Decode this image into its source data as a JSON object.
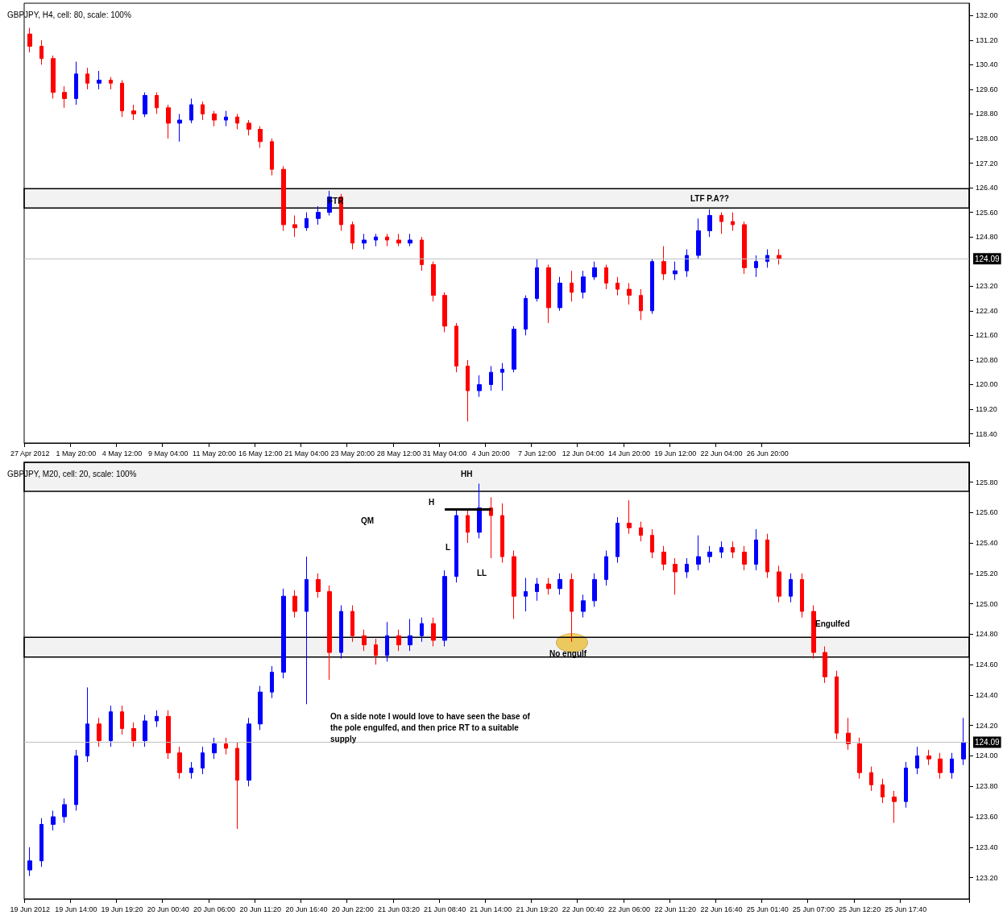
{
  "chart_data": [
    {
      "type": "candlestick",
      "title": "GBPJPY, H4, cell: 80, scale: 100%",
      "categories": [
        "27 Apr 2012",
        null,
        null,
        null,
        "1 May 20:00",
        null,
        null,
        null,
        "4 May 12:00",
        null,
        null,
        null,
        "9 May 04:00",
        null,
        null,
        null,
        "11 May 20:00",
        null,
        null,
        null,
        "16 May 12:00",
        null,
        null,
        null,
        "21 May 04:00",
        null,
        null,
        null,
        "23 May 20:00",
        null,
        null,
        null,
        "28 May 12:00",
        null,
        null,
        null,
        "31 May 04:00",
        null,
        null,
        null,
        "4 Jun 20:00",
        null,
        null,
        null,
        "7 Jun 12:00",
        null,
        null,
        null,
        "12 Jun 04:00",
        null,
        null,
        null,
        "14 Jun 20:00",
        null,
        null,
        null,
        "19 Jun 12:00",
        null,
        null,
        null,
        "22 Jun 04:00",
        null,
        null,
        null,
        "26 Jun 20:00",
        null,
        null,
        null,
        null,
        null,
        null,
        null,
        null,
        null,
        null,
        null,
        null,
        null,
        null,
        null,
        null,
        null
      ],
      "ohlc": [
        [
          131.4,
          131.6,
          130.8,
          131.0
        ],
        [
          131.0,
          131.2,
          130.4,
          130.6
        ],
        [
          130.6,
          130.7,
          129.3,
          129.5
        ],
        [
          129.5,
          129.7,
          129.0,
          129.3
        ],
        [
          129.3,
          130.5,
          129.1,
          130.1
        ],
        [
          130.1,
          130.3,
          129.6,
          129.8
        ],
        [
          129.8,
          130.2,
          129.6,
          129.9
        ],
        [
          129.9,
          130.0,
          129.6,
          129.8
        ],
        [
          129.8,
          129.9,
          128.7,
          128.9
        ],
        [
          128.9,
          129.1,
          128.6,
          128.8
        ],
        [
          128.8,
          129.5,
          128.7,
          129.4
        ],
        [
          129.4,
          129.5,
          128.8,
          129.0
        ],
        [
          129.0,
          129.1,
          128.0,
          128.5
        ],
        [
          128.5,
          128.8,
          127.9,
          128.6
        ],
        [
          128.6,
          129.3,
          128.5,
          129.1
        ],
        [
          129.1,
          129.2,
          128.6,
          128.8
        ],
        [
          128.8,
          128.9,
          128.4,
          128.6
        ],
        [
          128.6,
          128.9,
          128.4,
          128.7
        ],
        [
          128.7,
          128.8,
          128.3,
          128.5
        ],
        [
          128.5,
          128.6,
          128.1,
          128.3
        ],
        [
          128.3,
          128.4,
          127.7,
          127.9
        ],
        [
          127.9,
          128.0,
          126.8,
          127.0
        ],
        [
          127.0,
          127.1,
          125.0,
          125.2
        ],
        [
          125.2,
          125.5,
          124.8,
          125.1
        ],
        [
          125.1,
          125.6,
          125.0,
          125.4
        ],
        [
          125.4,
          125.8,
          125.2,
          125.6
        ],
        [
          125.6,
          126.3,
          125.5,
          126.1
        ],
        [
          126.1,
          126.2,
          125.0,
          125.2
        ],
        [
          125.2,
          125.3,
          124.4,
          124.6
        ],
        [
          124.6,
          124.9,
          124.4,
          124.7
        ],
        [
          124.7,
          124.9,
          124.5,
          124.8
        ],
        [
          124.8,
          124.9,
          124.5,
          124.7
        ],
        [
          124.7,
          124.9,
          124.5,
          124.6
        ],
        [
          124.6,
          124.9,
          124.5,
          124.7
        ],
        [
          124.7,
          124.8,
          123.7,
          123.9
        ],
        [
          123.9,
          124.0,
          122.7,
          122.9
        ],
        [
          122.9,
          123.0,
          121.7,
          121.9
        ],
        [
          121.9,
          122.0,
          120.4,
          120.6
        ],
        [
          120.6,
          120.8,
          118.8,
          119.8
        ],
        [
          119.8,
          120.3,
          119.6,
          120.0
        ],
        [
          120.0,
          120.6,
          119.8,
          120.4
        ],
        [
          120.4,
          120.7,
          119.8,
          120.5
        ],
        [
          120.5,
          121.9,
          120.4,
          121.8
        ],
        [
          121.8,
          122.9,
          121.6,
          122.8
        ],
        [
          122.8,
          124.1,
          122.7,
          123.8
        ],
        [
          123.8,
          123.9,
          122.0,
          122.5
        ],
        [
          122.5,
          123.5,
          122.4,
          123.3
        ],
        [
          123.3,
          123.7,
          122.7,
          123.0
        ],
        [
          123.0,
          123.7,
          122.8,
          123.5
        ],
        [
          123.5,
          124.0,
          123.4,
          123.8
        ],
        [
          123.8,
          123.9,
          123.1,
          123.3
        ],
        [
          123.3,
          123.5,
          122.9,
          123.1
        ],
        [
          123.1,
          123.3,
          122.6,
          122.9
        ],
        [
          122.9,
          123.1,
          122.1,
          122.4
        ],
        [
          122.4,
          124.1,
          122.3,
          124.0
        ],
        [
          124.0,
          124.5,
          123.4,
          123.6
        ],
        [
          123.6,
          124.0,
          123.4,
          123.7
        ],
        [
          123.7,
          124.4,
          123.5,
          124.2
        ],
        [
          124.2,
          125.4,
          124.1,
          125.0
        ],
        [
          125.0,
          125.7,
          124.8,
          125.5
        ],
        [
          125.5,
          125.6,
          124.9,
          125.3
        ],
        [
          125.3,
          125.6,
          125.0,
          125.2
        ],
        [
          125.2,
          125.3,
          123.6,
          123.8
        ],
        [
          123.8,
          124.2,
          123.5,
          124.0
        ],
        [
          124.0,
          124.4,
          123.8,
          124.2
        ],
        [
          124.2,
          124.4,
          123.9,
          124.09
        ],
        null,
        null,
        null,
        null,
        null,
        null,
        null,
        null,
        null,
        null,
        null,
        null,
        null,
        null,
        null,
        null
      ],
      "colors": [
        "#ff0000",
        "#ff0000",
        "#ff0000",
        "#ff0000",
        "#0000ff",
        "#ff0000",
        "#0000ff",
        "#ff0000",
        "#ff0000",
        "#ff0000",
        "#0000ff",
        "#ff0000",
        "#ff0000",
        "#0000ff",
        "#0000ff",
        "#ff0000",
        "#ff0000",
        "#0000ff",
        "#ff0000",
        "#ff0000",
        "#ff0000",
        "#ff0000",
        "#ff0000",
        "#ff0000",
        "#0000ff",
        "#0000ff",
        "#0000ff",
        "#ff0000",
        "#ff0000",
        "#0000ff",
        "#0000ff",
        "#ff0000",
        "#ff0000",
        "#0000ff",
        "#ff0000",
        "#ff0000",
        "#ff0000",
        "#ff0000",
        "#ff0000",
        "#0000ff",
        "#0000ff",
        "#0000ff",
        "#0000ff",
        "#0000ff",
        "#0000ff",
        "#ff0000",
        "#0000ff",
        "#ff0000",
        "#0000ff",
        "#0000ff",
        "#ff0000",
        "#ff0000",
        "#ff0000",
        "#ff0000",
        "#0000ff",
        "#ff0000",
        "#0000ff",
        "#0000ff",
        "#0000ff",
        "#0000ff",
        "#ff0000",
        "#ff0000",
        "#ff0000",
        "#0000ff",
        "#0000ff",
        "#ff0000",
        null,
        null,
        null,
        null,
        null,
        null,
        null,
        null,
        null,
        null,
        null,
        null,
        null,
        null,
        null,
        null
      ],
      "ylim": [
        118.1,
        132.4
      ],
      "yticks": [
        {
          "value": 118.4,
          "label": "118.40"
        },
        {
          "value": 119.2,
          "label": "119.20"
        },
        {
          "value": 120,
          "label": "120.00"
        },
        {
          "value": 120.8,
          "label": "120.80"
        },
        {
          "value": 121.6,
          "label": "121.60"
        },
        {
          "value": 122.4,
          "label": "122.40"
        },
        {
          "value": 123.2,
          "label": "123.20"
        },
        {
          "value": 124.8,
          "label": "124.80"
        },
        {
          "value": 125.6,
          "label": "125.60"
        },
        {
          "value": 126.4,
          "label": "126.40"
        },
        {
          "value": 127.2,
          "label": "127.20"
        },
        {
          "value": 128,
          "label": "128.00"
        },
        {
          "value": 128.8,
          "label": "128.80"
        },
        {
          "value": 129.6,
          "label": "129.60"
        },
        {
          "value": 130.4,
          "label": "130.40"
        },
        {
          "value": 131.2,
          "label": "131.20"
        },
        {
          "value": 132,
          "label": "132.00"
        }
      ],
      "ref_lines": [
        {
          "axis": "y",
          "value": 124.09,
          "label": "124.09",
          "color": "#c0c0c0"
        }
      ],
      "bands": [
        {
          "axis": "y",
          "from": 125.74,
          "to": 126.37
        }
      ],
      "annotations": [
        "FTR",
        "LTF P.A??"
      ]
    },
    {
      "type": "candlestick",
      "title": "GBPJPY, M20, cell: 20, scale: 100%",
      "categories": [
        "19 Jun 2012",
        null,
        null,
        null,
        "19 Jun 14:00",
        null,
        null,
        null,
        "19 Jun 19:20",
        null,
        null,
        null,
        "20 Jun 00:40",
        null,
        null,
        null,
        "20 Jun 06:00",
        null,
        null,
        null,
        "20 Jun 11:20",
        null,
        null,
        null,
        "20 Jun 16:40",
        null,
        null,
        null,
        "20 Jun 22:00",
        null,
        null,
        null,
        "21 Jun 03:20",
        null,
        null,
        null,
        "21 Jun 08:40",
        null,
        null,
        null,
        "21 Jun 14:00",
        null,
        null,
        null,
        "21 Jun 19:20",
        null,
        null,
        null,
        "22 Jun 00:40",
        null,
        null,
        null,
        "22 Jun 06:00",
        null,
        null,
        null,
        "22 Jun 11:20",
        null,
        null,
        null,
        "22 Jun 16:40",
        null,
        null,
        null,
        "25 Jun 01:40",
        null,
        null,
        null,
        "25 Jun 07:00",
        null,
        null,
        null,
        "25 Jun 12:20",
        null,
        null,
        null,
        "25 Jun 17:40",
        null,
        null,
        null,
        null,
        null
      ],
      "ohlc": [
        [
          123.25,
          123.4,
          123.21,
          123.31
        ],
        [
          123.31,
          123.59,
          123.27,
          123.55
        ],
        [
          123.55,
          123.64,
          123.51,
          123.6
        ],
        [
          123.6,
          123.72,
          123.56,
          123.68
        ],
        [
          123.68,
          124.04,
          123.64,
          124.0
        ],
        [
          124.0,
          124.45,
          123.96,
          124.21
        ],
        [
          124.21,
          124.25,
          124.06,
          124.1
        ],
        [
          124.1,
          124.33,
          124.06,
          124.29
        ],
        [
          124.29,
          124.33,
          124.14,
          124.18
        ],
        [
          124.18,
          124.22,
          124.06,
          124.1
        ],
        [
          124.1,
          124.27,
          124.06,
          124.23
        ],
        [
          124.23,
          124.3,
          124.19,
          124.26
        ],
        [
          124.26,
          124.3,
          123.98,
          124.02
        ],
        [
          124.02,
          124.06,
          123.85,
          123.89
        ],
        [
          123.89,
          123.96,
          123.85,
          123.92
        ],
        [
          123.92,
          124.06,
          123.88,
          124.02
        ],
        [
          124.02,
          124.12,
          123.98,
          124.08
        ],
        [
          124.08,
          124.12,
          124.01,
          124.05
        ],
        [
          124.05,
          124.09,
          123.52,
          123.84
        ],
        [
          123.84,
          124.25,
          123.8,
          124.21
        ],
        [
          124.21,
          124.46,
          124.17,
          124.42
        ],
        [
          124.42,
          124.59,
          124.38,
          124.55
        ],
        [
          124.55,
          125.1,
          124.51,
          125.05
        ],
        [
          125.05,
          125.09,
          124.91,
          124.95
        ],
        [
          124.95,
          125.31,
          124.34,
          125.16
        ],
        [
          125.16,
          125.2,
          125.04,
          125.08
        ],
        [
          125.08,
          125.12,
          124.5,
          124.68
        ],
        [
          124.68,
          124.99,
          124.64,
          124.95
        ],
        [
          124.95,
          124.99,
          124.75,
          124.79
        ],
        [
          124.79,
          124.83,
          124.69,
          124.73
        ],
        [
          124.73,
          124.77,
          124.6,
          124.66
        ],
        [
          124.66,
          124.88,
          124.62,
          124.79
        ],
        [
          124.79,
          124.83,
          124.69,
          124.73
        ],
        [
          124.73,
          124.9,
          124.69,
          124.79
        ],
        [
          124.79,
          124.91,
          124.75,
          124.87
        ],
        [
          124.87,
          124.91,
          124.72,
          124.76
        ],
        [
          124.76,
          125.22,
          124.72,
          125.18
        ],
        [
          125.18,
          125.62,
          125.14,
          125.58
        ],
        [
          125.58,
          125.62,
          125.4,
          125.47
        ],
        [
          125.47,
          125.79,
          125.43,
          125.63
        ],
        [
          125.63,
          125.7,
          125.3,
          125.58
        ],
        [
          125.58,
          125.66,
          125.27,
          125.31
        ],
        [
          125.31,
          125.35,
          124.9,
          125.05
        ],
        [
          125.05,
          125.17,
          124.95,
          125.08
        ],
        [
          125.08,
          125.17,
          125.02,
          125.13
        ],
        [
          125.13,
          125.17,
          125.06,
          125.1
        ],
        [
          125.1,
          125.2,
          125.06,
          125.16
        ],
        [
          125.16,
          125.2,
          124.75,
          124.95
        ],
        [
          124.95,
          125.06,
          124.91,
          125.02
        ],
        [
          125.02,
          125.2,
          124.98,
          125.16
        ],
        [
          125.16,
          125.35,
          125.12,
          125.31
        ],
        [
          125.31,
          125.57,
          125.27,
          125.53
        ],
        [
          125.53,
          125.68,
          125.46,
          125.5
        ],
        [
          125.5,
          125.54,
          125.41,
          125.45
        ],
        [
          125.45,
          125.49,
          125.3,
          125.34
        ],
        [
          125.34,
          125.38,
          125.22,
          125.26
        ],
        [
          125.26,
          125.3,
          125.06,
          125.21
        ],
        [
          125.21,
          125.3,
          125.17,
          125.26
        ],
        [
          125.26,
          125.45,
          125.22,
          125.31
        ],
        [
          125.31,
          125.38,
          125.27,
          125.34
        ],
        [
          125.34,
          125.41,
          125.3,
          125.37
        ],
        [
          125.37,
          125.41,
          125.3,
          125.34
        ],
        [
          125.34,
          125.38,
          125.22,
          125.26
        ],
        [
          125.26,
          125.49,
          125.22,
          125.42
        ],
        [
          125.42,
          125.46,
          125.17,
          125.21
        ],
        [
          125.21,
          125.25,
          125.01,
          125.05
        ],
        [
          125.05,
          125.2,
          125.01,
          125.16
        ],
        [
          125.16,
          125.2,
          124.91,
          124.95
        ],
        [
          124.95,
          124.99,
          124.64,
          124.68
        ],
        [
          124.68,
          124.72,
          124.48,
          124.52
        ],
        [
          124.52,
          124.56,
          124.11,
          124.15
        ],
        [
          124.15,
          124.25,
          124.04,
          124.08
        ],
        [
          124.08,
          124.12,
          123.85,
          123.89
        ],
        [
          123.89,
          123.93,
          123.77,
          123.81
        ],
        [
          123.81,
          123.85,
          123.69,
          123.73
        ],
        [
          123.73,
          123.77,
          123.56,
          123.7
        ],
        [
          123.7,
          123.96,
          123.66,
          123.92
        ],
        [
          123.92,
          124.06,
          123.88,
          124.0
        ],
        [
          124.0,
          124.04,
          123.94,
          123.98
        ],
        [
          123.98,
          124.02,
          123.85,
          123.89
        ],
        [
          123.89,
          124.02,
          123.85,
          123.98
        ],
        [
          123.98,
          124.25,
          123.94,
          124.09
        ]
      ],
      "colors": [
        "#0000ff",
        "#0000ff",
        "#0000ff",
        "#0000ff",
        "#0000ff",
        "#0000ff",
        "#ff0000",
        "#0000ff",
        "#ff0000",
        "#ff0000",
        "#0000ff",
        "#0000ff",
        "#ff0000",
        "#ff0000",
        "#0000ff",
        "#0000ff",
        "#0000ff",
        "#ff0000",
        "#ff0000",
        "#0000ff",
        "#0000ff",
        "#0000ff",
        "#0000ff",
        "#ff0000",
        "#0000ff",
        "#ff0000",
        "#ff0000",
        "#0000ff",
        "#ff0000",
        "#ff0000",
        "#ff0000",
        "#0000ff",
        "#ff0000",
        "#0000ff",
        "#0000ff",
        "#ff0000",
        "#0000ff",
        "#0000ff",
        "#ff0000",
        "#0000ff",
        "#ff0000",
        "#ff0000",
        "#ff0000",
        "#0000ff",
        "#0000ff",
        "#ff0000",
        "#0000ff",
        "#ff0000",
        "#0000ff",
        "#0000ff",
        "#0000ff",
        "#0000ff",
        "#ff0000",
        "#ff0000",
        "#ff0000",
        "#ff0000",
        "#ff0000",
        "#0000ff",
        "#0000ff",
        "#0000ff",
        "#0000ff",
        "#ff0000",
        "#ff0000",
        "#0000ff",
        "#ff0000",
        "#ff0000",
        "#0000ff",
        "#ff0000",
        "#ff0000",
        "#ff0000",
        "#ff0000",
        "#ff0000",
        "#ff0000",
        "#ff0000",
        "#ff0000",
        "#ff0000",
        "#0000ff",
        "#0000ff",
        "#ff0000",
        "#ff0000",
        "#0000ff",
        "#0000ff"
      ],
      "series": [
        {
          "type": "line",
          "x": [
            "21 Jun 08:40",
            "21 Jun 14:00"
          ],
          "values": [
            125.62,
            125.62
          ],
          "color": "#000000"
        }
      ],
      "ylim": [
        123.06,
        125.93
      ],
      "yticks": [
        {
          "value": 123.2,
          "label": "123.20"
        },
        {
          "value": 123.4,
          "label": "123.40"
        },
        {
          "value": 123.6,
          "label": "123.60"
        },
        {
          "value": 123.8,
          "label": "123.80"
        },
        {
          "value": 124,
          "label": "124.00"
        },
        {
          "value": 124.2,
          "label": "124.20"
        },
        {
          "value": 124.4,
          "label": "124.40"
        },
        {
          "value": 124.6,
          "label": "124.60"
        },
        {
          "value": 124.8,
          "label": "124.80"
        },
        {
          "value": 125,
          "label": "125.00"
        },
        {
          "value": 125.2,
          "label": "125.20"
        },
        {
          "value": 125.4,
          "label": "125.40"
        },
        {
          "value": 125.6,
          "label": "125.60"
        },
        {
          "value": 125.8,
          "label": "125.80"
        }
      ],
      "ref_lines": [
        {
          "axis": "y",
          "value": 124.09,
          "label": "124.09",
          "color": "#c0c0c0"
        }
      ],
      "bands": [
        {
          "axis": "y",
          "from": 125.74,
          "to": 125.93
        },
        {
          "axis": "y",
          "from": 124.65,
          "to": 124.78
        }
      ],
      "annotations": [
        "HH",
        "H",
        "QM",
        "L",
        "LL",
        "No engulf",
        "Engulfed",
        "On a side note I would love to have seen the base of the pole engulfed, and then price RT to a suitable supply"
      ]
    }
  ]
}
